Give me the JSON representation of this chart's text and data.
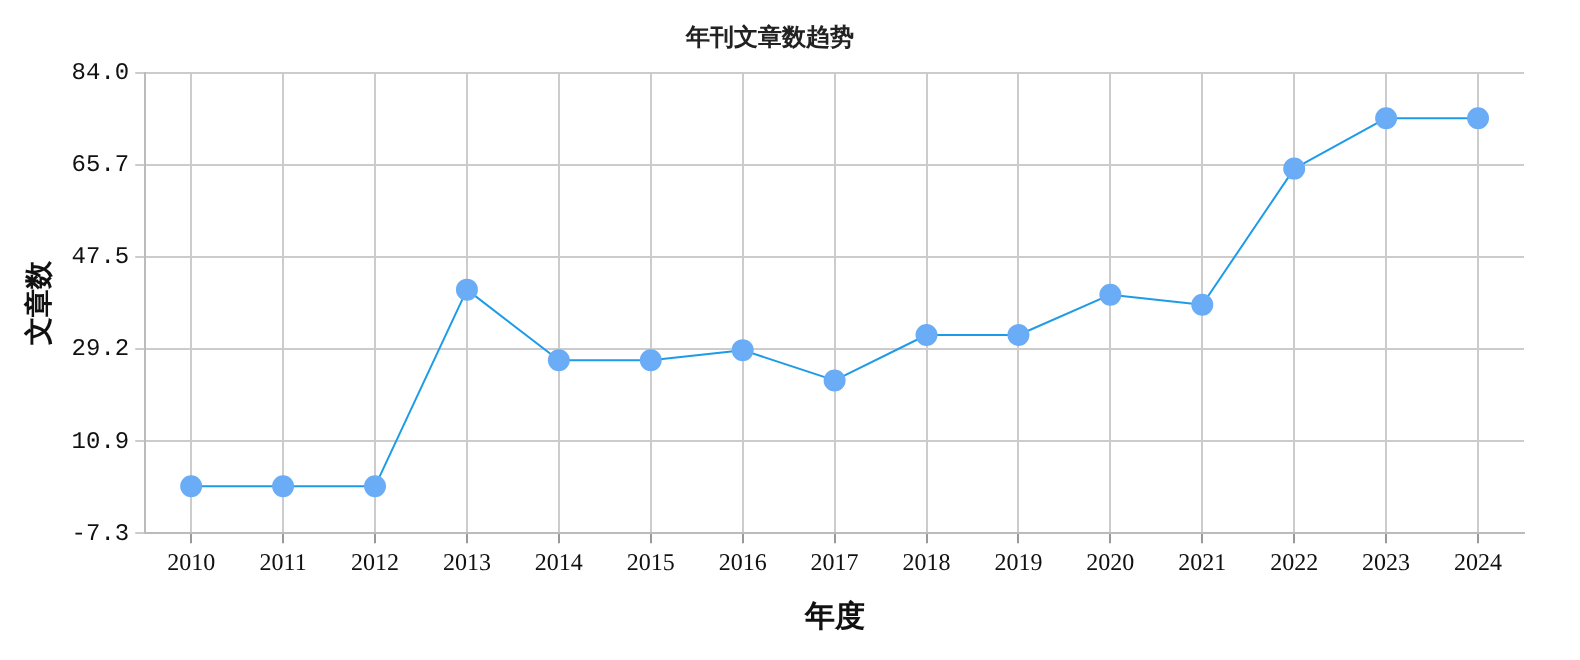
{
  "chart_data": {
    "type": "line",
    "title": "年刊文章数趋势",
    "xlabel": "年度",
    "ylabel": "文章数",
    "categories": [
      "2010",
      "2011",
      "2012",
      "2013",
      "2014",
      "2015",
      "2016",
      "2017",
      "2018",
      "2019",
      "2020",
      "2021",
      "2022",
      "2023",
      "2024"
    ],
    "series": [
      {
        "color": "#1e9be8",
        "values": [
          2,
          2,
          2,
          41,
          27,
          27,
          29,
          23,
          32,
          32,
          40,
          38,
          65,
          75,
          75
        ]
      }
    ],
    "ylim": [
      -7.3,
      84.0
    ],
    "yticks": [
      {
        "value": -7.3,
        "label": "-7.3"
      },
      {
        "value": 10.9,
        "label": "10.9"
      },
      {
        "value": 29.2,
        "label": "29.2"
      },
      {
        "value": 47.5,
        "label": "47.5"
      },
      {
        "value": 65.7,
        "label": "65.7"
      },
      {
        "value": 84.0,
        "label": "84.0"
      }
    ],
    "grid": true,
    "marker": "circle",
    "line_style": "solid",
    "legend": false
  }
}
